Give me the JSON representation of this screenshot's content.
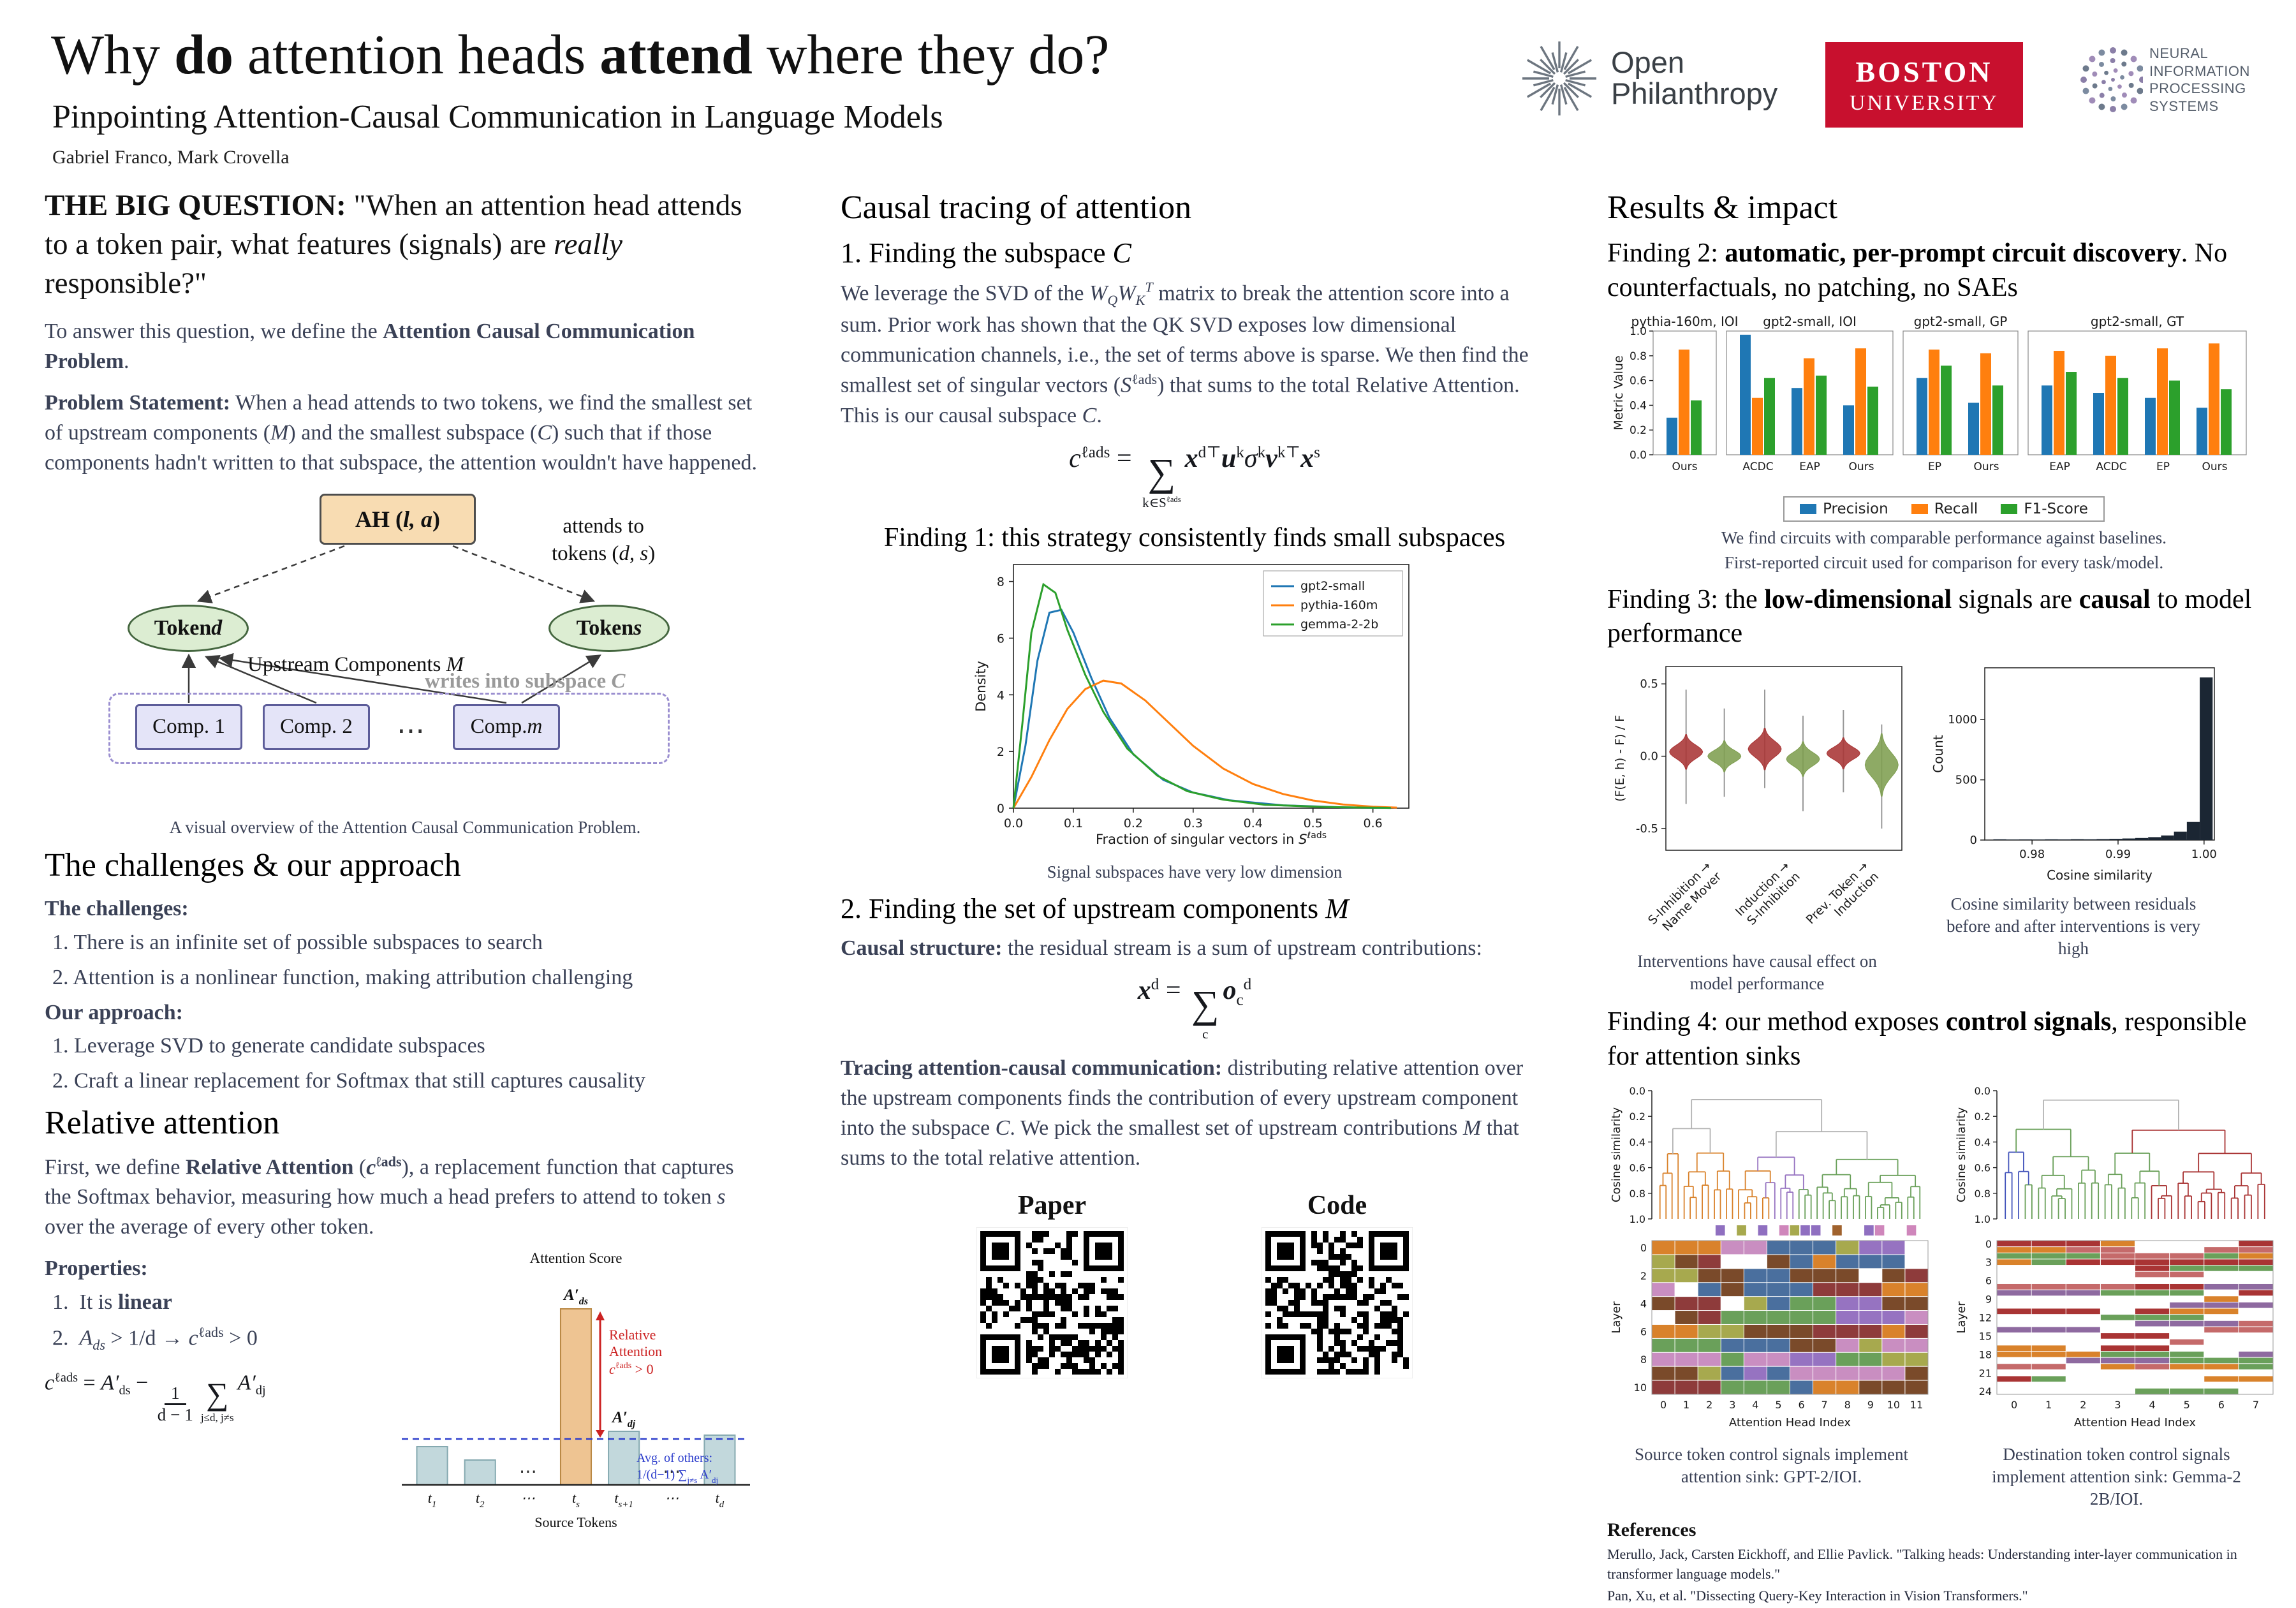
{
  "header": {
    "title_html": "Why <b>do</b> attention heads <b>attend</b> where they do?",
    "subtitle": "Pinpointing Attention-Causal Communication in Language Models",
    "authors": "Gabriel Franco, Mark Crovella",
    "logo_openphil_line1": "Open",
    "logo_openphil_line2": "Philanthropy",
    "logo_bu_line1": "BOSTON",
    "logo_bu_line2": "UNIVERSITY",
    "logo_neurips_line1": "NEURAL INFORMATION",
    "logo_neurips_line2": "PROCESSING SYSTEMS"
  },
  "col1": {
    "big_question_html": "<b>THE BIG QUESTION:</b> \"When an attention head attends to a token pair, what features (signals) are <i>really</i> responsible?\"",
    "intro_html": "To answer this question, we define the <b>Attention Causal Communication Problem</b>.",
    "problem_html": "<b>Problem Statement:</b> When a head attends to two tokens, we find the smallest set of upstream components (<i>M</i>) and the smallest subspace (<i>C</i>) such that if those components hadn't written to that subspace, the attention wouldn't have happened.",
    "diagram": {
      "ah_html": "AH (<i>l, a</i>)",
      "attends_html": "attends to<br>tokens (<i>d, s</i>)",
      "token_d_html": "Token <i>d</i>",
      "token_s_html": "Token <i>s</i>",
      "upstream_html": "Upstream Components <i>M</i>",
      "writes_html": "writes into subspace <i>C</i>",
      "comp1": "Comp. 1",
      "comp2": "Comp. 2",
      "dots": "⋯",
      "compm_html": "Comp. <i>m</i>",
      "caption": "A visual overview of the Attention Causal Communication Problem."
    },
    "challenges_heading": "The challenges & our approach",
    "challenges_label": "The challenges:",
    "challenge1": "1.  There is an infinite set of possible subspaces to search",
    "challenge2": "2.  Attention is a nonlinear function, making attribution challenging",
    "approach_label": "Our approach:",
    "approach1": "1.  Leverage SVD to generate candidate subspaces",
    "approach2": "2.  Craft a linear replacement for Softmax that still captures causality",
    "relative_heading": "Relative attention",
    "relative_html": "First, we define <b>Relative Attention</b> (<b><i>c</i><sup>ℓads</sup></b>), a replacement function that captures the Softmax behavior, measuring how much a head prefers to attend to token <i>s</i> over the average of every other token.",
    "properties_label": "Properties:",
    "prop1_html": "1.&nbsp; It is <b>linear</b>",
    "prop2_html": "2.&nbsp; <i>A<sub>ds</sub></i> &gt; 1/d  →  <i>c</i><sup>ℓads</sup> &gt; 0",
    "formula_html": "<i>c</i><sup>ℓads</sup> = <i>A′</i><sub>ds</sub> − <span class='frac'><span>1</span><span>d − 1</span></span><span class='sum'><span class='sig'>∑</span><span class='lim'>j≤d, j≠s</span></span><i>A′</i><sub>dj</sub>"
  },
  "col2": {
    "heading": "Causal tracing of attention",
    "sub1_html": "1. Finding the subspace <i>C</i>",
    "para1_html": "We leverage the SVD of the <i>W<sub>Q</sub>W<sub>K</sub><sup>T</sup></i> matrix to break the attention score into a sum. Prior work has shown that the QK SVD exposes low dimensional communication channels, i.e., the set of terms above is sparse. We then find the smallest set of singular vectors (<i>S</i><sup>ℓads</sup>) that sums to the total Relative Attention. This is our causal subspace <i>C</i>.",
    "formula_subspace_html": "<i>c</i><sup>ℓads</sup> = <span class='sum'><span class='sig'>∑</span><span class='lim'>k∈S<sup>ℓads</sup></span></span><b><i>x</i></b><sup>d⊤</sup><b><i>u</i></b><sup>k</sup><i>σ</i><sup>k</sup><b><i>v</i></b><sup>k⊤</sup><b><i>x</i></b><sup>s</sup>",
    "finding1": "Finding 1: this strategy consistently finds small subspaces",
    "fig1_caption": "Signal subspaces have very low dimension",
    "sub2_html": "2. Finding the set of upstream components <i>M</i>",
    "causal_html": "<b>Causal structure:</b> the residual stream is a sum of upstream contributions:",
    "formula_residual_html": "<b><i>x</i></b><sup>d</sup> = <span class='sum'><span class='sig'>∑</span><span class='lim'>c</span></span><b><i>o</i></b><sub>c</sub><sup>d</sup>",
    "tracing_html": "<b>Tracing attention-causal communication:</b> distributing relative attention over the upstream components finds the contribution of every upstream component into the subspace <i>C</i>. We pick the smallest set of upstream contributions <i>M</i> that sums to the total relative attention.",
    "paper_label": "Paper",
    "code_label": "Code"
  },
  "col3": {
    "heading": "Results & impact",
    "finding2_html": "Finding 2: <b>automatic, per-prompt circuit discovery</b>. No counterfactuals, no patching, no SAEs",
    "metrics_caption1": "We find circuits with comparable performance against baselines.",
    "metrics_caption2": "First-reported circuit used for comparison for every task/model.",
    "finding3_html": "Finding 3: the <b>low-dimensional</b> signals are <b>causal</b> to model performance",
    "violin_caption": "Interventions have causal effect on model performance",
    "hist_caption": "Cosine similarity between residuals before and after interventions is very high",
    "finding4_html": "Finding 4: our method exposes <b>control signals</b>, responsible for attention sinks",
    "references_heading": "References",
    "ref1": "Merullo, Jack, Carsten Eickhoff, and Ellie Pavlick. \"Talking heads: Understanding inter-layer communication in transformer language models.\"",
    "ref2": "Pan, Xu, et al. \"Dissecting Query-Key Interaction in Vision Transformers.\""
  },
  "chart_data": {
    "attn": {
      "type": "bar",
      "title": "Attention Score",
      "xlabel": "Source Tokens",
      "bars": [
        {
          "base": "t",
          "sub": "1",
          "h": 0.2,
          "kind": "plain"
        },
        {
          "base": "t",
          "sub": "2",
          "h": 0.13,
          "kind": "plain"
        },
        {
          "base": "⋯",
          "sub": "",
          "h": 0,
          "kind": "dots"
        },
        {
          "base": "t",
          "sub": "s",
          "h": 0.92,
          "kind": "main"
        },
        {
          "base": "t",
          "sub": "s+1",
          "h": 0.28,
          "kind": "plain"
        },
        {
          "base": "⋯",
          "sub": "",
          "h": 0,
          "kind": "dots"
        },
        {
          "base": "t",
          "sub": "d",
          "h": 0.26,
          "kind": "plain"
        }
      ],
      "avg": 0.24,
      "main_label": "A′",
      "main_sub": "ds",
      "other_label": "A′",
      "other_sub": "dj",
      "relative_lines": [
        "Relative",
        "Attention"
      ],
      "relative_math_base": "c",
      "relative_math_sup": "ℓads",
      "relative_math_rest": " > 0",
      "avg_line1": "Avg. of others:",
      "avg_l2_parts": [
        "1/(d−1) ∑",
        "j≠s",
        " A′",
        "dj"
      ],
      "colors": {
        "plain": "#c2d8dc",
        "main": "#eec492",
        "avg_line": "#2b3ccc",
        "relative": "#cc2222"
      }
    },
    "density": {
      "type": "line",
      "xlabel_pre": "Fraction of singular vectors in ",
      "xlabel_base": "S",
      "xlabel_sup": "ℓads",
      "ylabel": "Density",
      "xlim": [
        0,
        0.66
      ],
      "ylim": [
        0,
        8.6
      ],
      "xticks": [
        0,
        0.1,
        0.2,
        0.3,
        0.4,
        0.5,
        0.6
      ],
      "yticks": [
        0,
        2,
        4,
        6,
        8
      ],
      "series": [
        {
          "name": "gpt2-small",
          "color": "#1f77b4",
          "pts": [
            [
              0,
              0
            ],
            [
              0.02,
              2.2
            ],
            [
              0.04,
              5.2
            ],
            [
              0.06,
              6.9
            ],
            [
              0.08,
              7.0
            ],
            [
              0.1,
              6.2
            ],
            [
              0.13,
              4.6
            ],
            [
              0.16,
              3.2
            ],
            [
              0.2,
              1.9
            ],
            [
              0.25,
              1.0
            ],
            [
              0.3,
              0.55
            ],
            [
              0.36,
              0.28
            ],
            [
              0.45,
              0.1
            ],
            [
              0.55,
              0.03
            ],
            [
              0.63,
              0.01
            ]
          ]
        },
        {
          "name": "pythia-160m",
          "color": "#ff7f0e",
          "pts": [
            [
              0,
              0
            ],
            [
              0.03,
              1.1
            ],
            [
              0.06,
              2.4
            ],
            [
              0.09,
              3.5
            ],
            [
              0.12,
              4.2
            ],
            [
              0.15,
              4.5
            ],
            [
              0.18,
              4.4
            ],
            [
              0.22,
              3.8
            ],
            [
              0.26,
              3.0
            ],
            [
              0.3,
              2.2
            ],
            [
              0.35,
              1.4
            ],
            [
              0.4,
              0.85
            ],
            [
              0.45,
              0.5
            ],
            [
              0.5,
              0.27
            ],
            [
              0.55,
              0.13
            ],
            [
              0.6,
              0.05
            ],
            [
              0.64,
              0.02
            ]
          ]
        },
        {
          "name": "gemma-2-2b",
          "color": "#2ca02c",
          "pts": [
            [
              0,
              0
            ],
            [
              0.015,
              3.0
            ],
            [
              0.03,
              6.2
            ],
            [
              0.05,
              7.9
            ],
            [
              0.07,
              7.6
            ],
            [
              0.09,
              6.3
            ],
            [
              0.12,
              4.7
            ],
            [
              0.15,
              3.4
            ],
            [
              0.19,
              2.1
            ],
            [
              0.24,
              1.15
            ],
            [
              0.29,
              0.6
            ],
            [
              0.35,
              0.3
            ],
            [
              0.42,
              0.12
            ],
            [
              0.52,
              0.04
            ],
            [
              0.63,
              0.01
            ]
          ]
        }
      ]
    },
    "metrics": {
      "type": "bar",
      "ylabel": "Metric Value",
      "yticks": [
        0,
        0.2,
        0.4,
        0.6,
        0.8,
        1.0
      ],
      "series": [
        "Precision",
        "Recall",
        "F1-Score"
      ],
      "colors": [
        "#1f77b4",
        "#ff7f0e",
        "#2ca02c"
      ],
      "panels": [
        {
          "title": "pythia-160m, IOI",
          "groups": [
            {
              "label": "Ours",
              "v": [
                0.3,
                0.85,
                0.44
              ]
            }
          ]
        },
        {
          "title": "gpt2-small, IOI",
          "groups": [
            {
              "label": "ACDC",
              "v": [
                0.97,
                0.46,
                0.62
              ]
            },
            {
              "label": "EAP",
              "v": [
                0.54,
                0.78,
                0.64
              ]
            },
            {
              "label": "Ours",
              "v": [
                0.4,
                0.86,
                0.55
              ]
            }
          ]
        },
        {
          "title": "gpt2-small, GP",
          "groups": [
            {
              "label": "EP",
              "v": [
                0.62,
                0.85,
                0.72
              ]
            },
            {
              "label": "Ours",
              "v": [
                0.42,
                0.82,
                0.56
              ]
            }
          ]
        },
        {
          "title": "gpt2-small, GT",
          "groups": [
            {
              "label": "EAP",
              "v": [
                0.56,
                0.84,
                0.67
              ]
            },
            {
              "label": "ACDC",
              "v": [
                0.5,
                0.8,
                0.62
              ]
            },
            {
              "label": "EP",
              "v": [
                0.46,
                0.86,
                0.6
              ]
            },
            {
              "label": "Ours",
              "v": [
                0.38,
                0.9,
                0.53
              ]
            }
          ]
        }
      ]
    },
    "violin": {
      "type": "violin",
      "ylabel": "(F(E, h) - F) / F",
      "ylim": [
        -0.65,
        0.62
      ],
      "yticks": [
        -0.5,
        0,
        0.5
      ],
      "cats": [
        {
          "lines": [
            "S-Inhibition →",
            "Name Mover"
          ],
          "v": [
            {
              "c": "#a93434",
              "mu": 0.03,
              "s": 0.05,
              "lo": -0.33,
              "hi": 0.46
            },
            {
              "c": "#7e9e50",
              "mu": 0.0,
              "s": 0.045,
              "lo": -0.28,
              "hi": 0.33
            }
          ]
        },
        {
          "lines": [
            "Induction →",
            "S-Inhibition"
          ],
          "v": [
            {
              "c": "#a93434",
              "mu": 0.05,
              "s": 0.06,
              "lo": -0.22,
              "hi": 0.46
            },
            {
              "c": "#7e9e50",
              "mu": -0.02,
              "s": 0.05,
              "lo": -0.38,
              "hi": 0.28
            }
          ]
        },
        {
          "lines": [
            "Prev. Token →",
            "Induction"
          ],
          "v": [
            {
              "c": "#a93434",
              "mu": 0.02,
              "s": 0.045,
              "lo": -0.25,
              "hi": 0.32
            },
            {
              "c": "#7e9e50",
              "mu": -0.06,
              "s": 0.09,
              "lo": -0.5,
              "hi": 0.22
            }
          ]
        }
      ]
    },
    "hist": {
      "type": "bar",
      "xlabel": "Cosine similarity",
      "ylabel": "Count",
      "xlim": [
        0.9745,
        1.0012
      ],
      "ylim": [
        0,
        1430
      ],
      "xticks": [
        0.98,
        0.99,
        1.0
      ],
      "yticks": [
        0,
        500,
        1000
      ],
      "binw": 0.0015,
      "color": "#1b2633",
      "bins": [
        [
          0.9755,
          6
        ],
        [
          0.977,
          4
        ],
        [
          0.9785,
          5
        ],
        [
          0.98,
          4
        ],
        [
          0.9815,
          6
        ],
        [
          0.983,
          5
        ],
        [
          0.9845,
          7
        ],
        [
          0.986,
          6
        ],
        [
          0.9875,
          8
        ],
        [
          0.989,
          10
        ],
        [
          0.9905,
          13
        ],
        [
          0.992,
          17
        ],
        [
          0.9935,
          24
        ],
        [
          0.995,
          38
        ],
        [
          0.9965,
          70
        ],
        [
          0.998,
          150
        ],
        [
          0.9995,
          1350
        ]
      ]
    },
    "dendroL": {
      "type": "heatmap",
      "seed": 7,
      "leaves": 44,
      "gray_below": 0.4,
      "spans": [
        [
          0,
          0.42,
          "#d9822b"
        ],
        [
          0.42,
          0.53,
          "#9673c1"
        ],
        [
          0.53,
          1,
          "#6aa05a"
        ]
      ],
      "strip": {
        "seed": 11,
        "colors": [
          "#cf86bb",
          "#a7a94e",
          "#8f6fc0",
          "#a0622d"
        ]
      },
      "heat": {
        "seed": 5,
        "rows": 11,
        "cols": 12,
        "density": 0.8,
        "palette": [
          "#8e3b3b",
          "#d9822b",
          "#6aa05a",
          "#9673c1",
          "#c98ec1",
          "#a7a94e",
          "#7a4a2a",
          "#4a6f9e"
        ]
      },
      "ylabel_dendro": "Cosine similarity",
      "ylabel_heat": "Layer",
      "xlabel": "Attention Head Index",
      "dendro_yticks": [
        0,
        0.2,
        0.4,
        0.6,
        0.8,
        1
      ],
      "heat_yticks": [
        0,
        2,
        4,
        6,
        8,
        10
      ],
      "caption": "Source token control signals implement attention sink: GPT-2/IOI."
    },
    "dendroR": {
      "type": "heatmap",
      "seed": 29,
      "leaves": 40,
      "gray_below": 0.3,
      "spans": [
        [
          0,
          0.1,
          "#4455bb"
        ],
        [
          0.1,
          0.58,
          "#6aa05a"
        ],
        [
          0.58,
          1,
          "#a93434"
        ]
      ],
      "strip": null,
      "heat": {
        "seed": 13,
        "rows": 25,
        "cols": 8,
        "density": 0.45,
        "palette": [
          "#a93434",
          "#6aa05a",
          "#d9822b",
          "#c56a6a",
          "#8e6aa0"
        ]
      },
      "ylabel_dendro": "Cosine similarity",
      "ylabel_heat": "Layer",
      "xlabel": "Attention Head Index",
      "dendro_yticks": [
        0,
        0.2,
        0.4,
        0.6,
        0.8,
        1
      ],
      "heat_yticks": [
        0,
        3,
        6,
        9,
        12,
        15,
        18,
        21,
        24
      ],
      "caption": "Destination token control signals implement attention sink: Gemma-2 2B/IOI."
    },
    "qr": {
      "paper_seed": 3,
      "code_seed": 8
    }
  }
}
